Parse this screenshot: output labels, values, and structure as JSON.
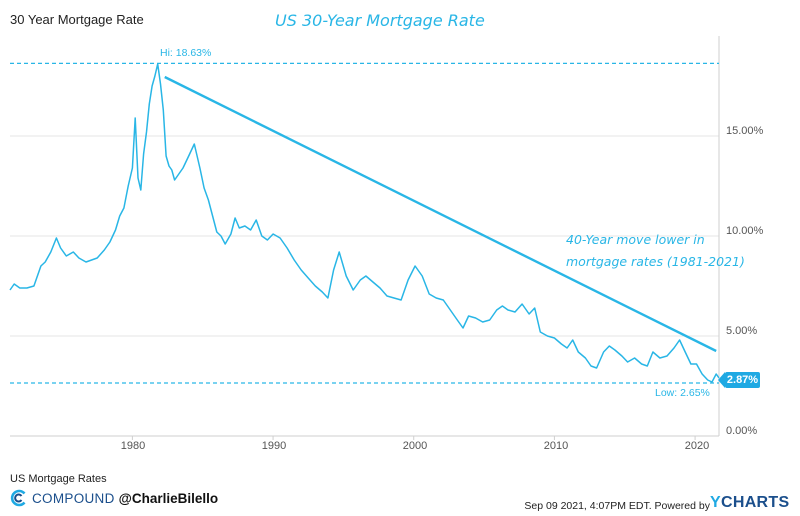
{
  "header": {
    "title": "30 Year Mortgage Rate",
    "headline": "US 30-Year Mortgage Rate"
  },
  "annotation": {
    "line1": "40-Year move lower in",
    "line2": "mortgage rates (1981-2021)"
  },
  "markers": {
    "high_label": "Hi: 18.63%",
    "low_label": "Low: 2.65%",
    "last_value_label": "2.87%"
  },
  "footer": {
    "series_name": "US Mortgage Rates",
    "brand": "COMPOUND",
    "handle": "@CharlieBilello",
    "timestamp": "Sep 09 2021, 4:07PM EDT.",
    "powered_by": "Powered by",
    "powered_brand_y": "Y",
    "powered_brand_rest": "CHARTS"
  },
  "colors": {
    "series": "#29b6e6",
    "badge": "#1fa9e3",
    "brand": "#1b4f8c",
    "grid": "#e6e6e6"
  },
  "chart_data": {
    "type": "line",
    "title": "US 30-Year Mortgage Rate",
    "xlim": [
      1971.3,
      2021.7
    ],
    "ylim": [
      0,
      20
    ],
    "x_ticks": [
      1980,
      1990,
      2000,
      2010,
      2020
    ],
    "x_tick_labels": [
      "1980",
      "1990",
      "2000",
      "2010",
      "2020"
    ],
    "y_ticks": [
      0,
      5,
      10,
      15
    ],
    "y_tick_labels": [
      "0.00%",
      "5.00%",
      "10.00%",
      "15.00%"
    ],
    "grid": "horizontal",
    "high": {
      "x": 1981.8,
      "y": 18.63
    },
    "low": {
      "x": 2021.0,
      "y": 2.65
    },
    "last": {
      "x": 2021.7,
      "y": 2.87
    },
    "trendline": {
      "x": [
        1982.3,
        2021.5
      ],
      "y": [
        17.95,
        4.25
      ]
    },
    "series": [
      {
        "x": [
          1971.3,
          1971.6,
          1972.0,
          1972.5,
          1973.0,
          1973.5,
          1973.8,
          1974.2,
          1974.6,
          1974.9,
          1975.3,
          1975.8,
          1976.2,
          1976.7,
          1977.1,
          1977.5,
          1978.0,
          1978.4,
          1978.8,
          1979.1,
          1979.4,
          1979.7,
          1980.0,
          1980.2,
          1980.4,
          1980.6,
          1980.8,
          1981.0,
          1981.2,
          1981.4,
          1981.6,
          1981.8,
          1982.0,
          1982.2,
          1982.4,
          1982.6,
          1982.8,
          1983.0,
          1983.3,
          1983.6,
          1984.0,
          1984.4,
          1984.8,
          1985.1,
          1985.4,
          1985.7,
          1986.0,
          1986.3,
          1986.6,
          1987.0,
          1987.3,
          1987.6,
          1988.0,
          1988.4,
          1988.8,
          1989.2,
          1989.6,
          1990.0,
          1990.5,
          1991.0,
          1991.5,
          1992.0,
          1992.5,
          1993.0,
          1993.5,
          1993.9,
          1994.3,
          1994.7,
          1995.2,
          1995.7,
          1996.2,
          1996.6,
          1997.1,
          1997.6,
          1998.1,
          1998.6,
          1999.1,
          1999.6,
          2000.1,
          2000.6,
          2001.1,
          2001.6,
          2002.1,
          2002.6,
          2003.1,
          2003.5,
          2003.9,
          2004.4,
          2004.9,
          2005.4,
          2005.9,
          2006.3,
          2006.7,
          2007.2,
          2007.7,
          2008.2,
          2008.6,
          2009.0,
          2009.5,
          2010.0,
          2010.5,
          2010.9,
          2011.3,
          2011.7,
          2012.2,
          2012.6,
          2013.0,
          2013.5,
          2013.9,
          2014.3,
          2014.8,
          2015.2,
          2015.7,
          2016.2,
          2016.6,
          2017.0,
          2017.5,
          2018.0,
          2018.5,
          2018.9,
          2019.3,
          2019.7,
          2020.1,
          2020.5,
          2020.9,
          2021.2,
          2021.5,
          2021.7
        ],
        "y": [
          7.3,
          7.6,
          7.4,
          7.4,
          7.5,
          8.5,
          8.7,
          9.2,
          9.9,
          9.4,
          9.0,
          9.2,
          8.9,
          8.7,
          8.8,
          8.9,
          9.3,
          9.7,
          10.3,
          11.0,
          11.4,
          12.5,
          13.4,
          15.9,
          12.9,
          12.3,
          14.1,
          15.2,
          16.6,
          17.5,
          18.0,
          18.6,
          17.6,
          16.3,
          14.0,
          13.5,
          13.3,
          12.8,
          13.1,
          13.4,
          14.0,
          14.6,
          13.4,
          12.4,
          11.8,
          11.0,
          10.2,
          10.0,
          9.6,
          10.1,
          10.9,
          10.4,
          10.5,
          10.3,
          10.8,
          10.0,
          9.8,
          10.1,
          9.9,
          9.4,
          8.8,
          8.3,
          7.9,
          7.5,
          7.2,
          6.9,
          8.3,
          9.2,
          8.0,
          7.3,
          7.8,
          8.0,
          7.7,
          7.4,
          7.0,
          6.9,
          6.8,
          7.8,
          8.5,
          8.0,
          7.1,
          6.9,
          6.8,
          6.3,
          5.8,
          5.4,
          6.0,
          5.9,
          5.7,
          5.8,
          6.3,
          6.5,
          6.3,
          6.2,
          6.6,
          6.1,
          6.4,
          5.2,
          5.0,
          4.9,
          4.6,
          4.4,
          4.8,
          4.2,
          3.9,
          3.5,
          3.4,
          4.2,
          4.5,
          4.3,
          4.0,
          3.7,
          3.9,
          3.6,
          3.5,
          4.2,
          3.9,
          4.0,
          4.4,
          4.8,
          4.2,
          3.6,
          3.6,
          3.1,
          2.8,
          2.7,
          3.1,
          2.9
        ]
      }
    ]
  }
}
